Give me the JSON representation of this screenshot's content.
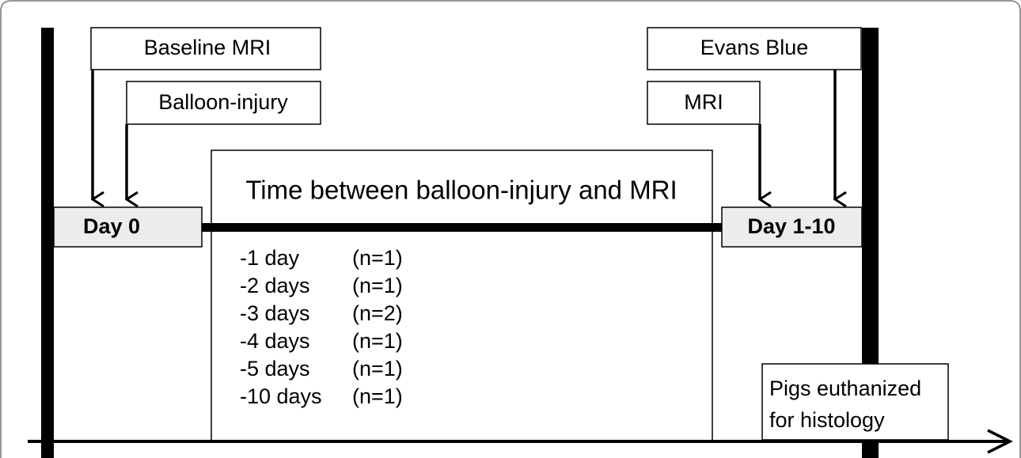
{
  "events_left": [
    "Baseline MRI",
    "Balloon-injury"
  ],
  "events_right": [
    "Evans Blue",
    "MRI"
  ],
  "day_start": "Day 0",
  "day_end": "Day 1-10",
  "interval_box": {
    "title": "Time between balloon-injury and MRI",
    "rows": [
      [
        "-1 day",
        "(n=1)"
      ],
      [
        "-2 days",
        "(n=1)"
      ],
      [
        "-3 days",
        "(n=2)"
      ],
      [
        "-4 days",
        "(n=1)"
      ],
      [
        "-5 days",
        "(n=1)"
      ],
      [
        "-10 days",
        "(n=1)"
      ]
    ]
  },
  "end_note": [
    "Pigs euthanized",
    "for histology"
  ]
}
